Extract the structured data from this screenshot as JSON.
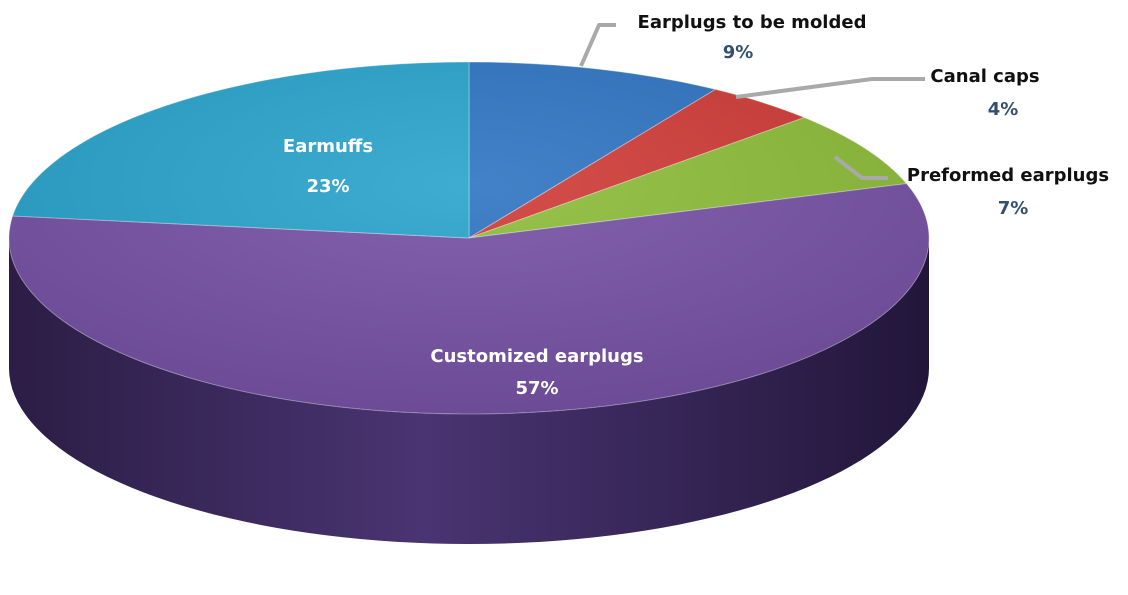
{
  "chart_data": {
    "type": "pie",
    "style": "3d",
    "legend": "none",
    "slices": [
      {
        "label": "Earplugs to be molded",
        "value": 9,
        "display": "9%",
        "color": "#2f74c2",
        "label_placement": "outside"
      },
      {
        "label": "Canal caps",
        "value": 4,
        "display": "4%",
        "color": "#cf3b36",
        "label_placement": "outside"
      },
      {
        "label": "Preformed earplugs",
        "value": 7,
        "display": "7%",
        "color": "#8cbd3a",
        "label_placement": "outside"
      },
      {
        "label": "Customized earplugs",
        "value": 57,
        "display": "57%",
        "color": "#7651a5",
        "label_placement": "inside"
      },
      {
        "label": "Earmuffs",
        "value": 23,
        "display": "23%",
        "color": "#29a3cc",
        "label_placement": "inside"
      }
    ],
    "colors": {
      "inside_label": "#ffffff",
      "outside_label_name": "#111111",
      "outside_label_pct": "#33506e",
      "leader_line": "#a9a9a9"
    }
  }
}
